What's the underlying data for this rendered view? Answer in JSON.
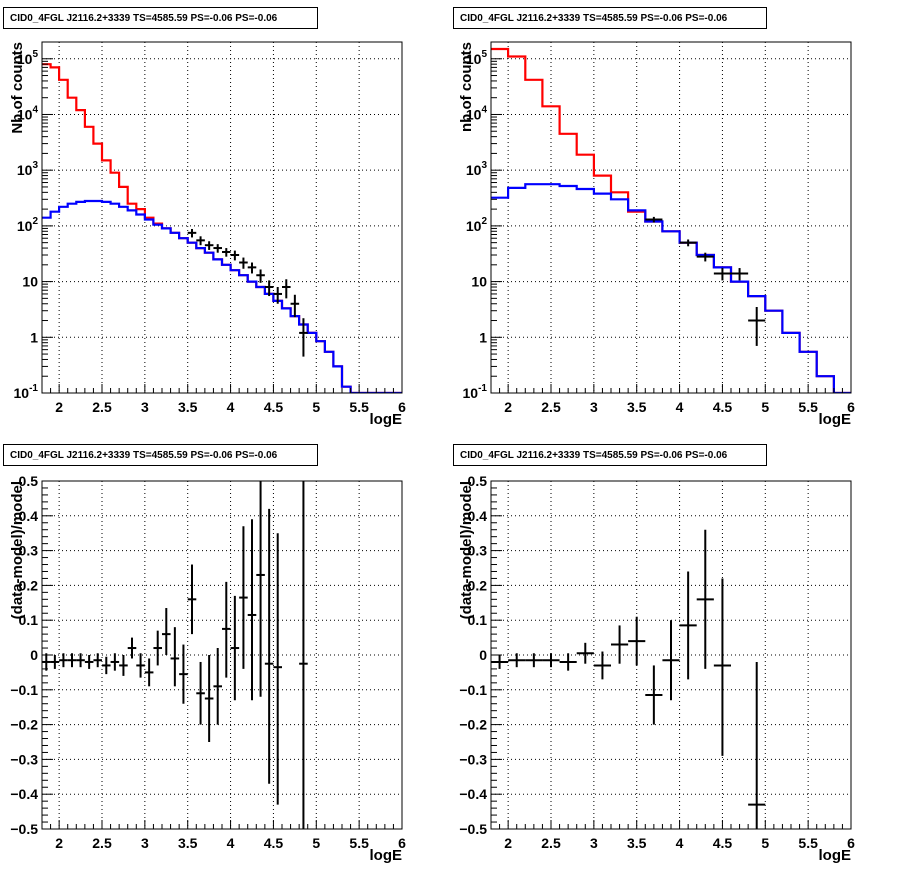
{
  "chart_data": [
    {
      "type": "line",
      "title": "CID0_4FGL J2116.2+3339 TS=4585.59 PS=-0.06 PS=-0.06",
      "xlabel": "logE",
      "ylabel": "Nb of counts",
      "xlim": [
        1.8,
        6.0
      ],
      "ylim": [
        0.1,
        200000
      ],
      "yscale": "log",
      "grid": true,
      "x_ticks": [
        "2",
        "2.5",
        "3",
        "3.5",
        "4",
        "4.5",
        "5",
        "5.5",
        "6"
      ],
      "y_ticks": [
        "10^-1",
        "1",
        "10",
        "10^2",
        "10^3",
        "10^4",
        "10^5"
      ],
      "series": [
        {
          "color": "#ff0000",
          "style": "step",
          "edges": [
            1.8,
            1.9,
            2.0,
            2.1,
            2.2,
            2.3,
            2.4,
            2.5,
            2.6,
            2.7,
            2.8,
            2.9,
            3.0,
            3.1,
            3.2,
            3.3,
            3.4,
            3.5,
            3.6,
            3.7,
            3.8,
            3.9,
            4.0,
            4.1,
            4.2,
            4.3,
            4.4,
            4.5,
            4.6,
            4.7,
            4.8,
            4.9,
            5.0,
            5.1,
            5.2,
            5.3,
            5.4,
            5.5,
            5.6,
            5.7,
            5.8,
            5.9,
            6.0
          ],
          "values": [
            80000,
            70000,
            42000,
            20000,
            12000,
            6000,
            3000,
            1500,
            900,
            500,
            250,
            200,
            140,
            110,
            90,
            75,
            60,
            50,
            40,
            33,
            25,
            20,
            16,
            13,
            10,
            8,
            6,
            4.5,
            3.3,
            2.4,
            1.7,
            1.2,
            0.85,
            0.55,
            0.3,
            0.13,
            0.1,
            0.1,
            0.1,
            0.1,
            0.1,
            0.1
          ]
        },
        {
          "color": "#0000ff",
          "style": "step",
          "edges": [
            1.8,
            1.9,
            2.0,
            2.1,
            2.2,
            2.3,
            2.4,
            2.5,
            2.6,
            2.7,
            2.8,
            2.9,
            3.0,
            3.1,
            3.2,
            3.3,
            3.4,
            3.5,
            3.6,
            3.7,
            3.8,
            3.9,
            4.0,
            4.1,
            4.2,
            4.3,
            4.4,
            4.5,
            4.6,
            4.7,
            4.8,
            4.9,
            5.0,
            5.1,
            5.2,
            5.3,
            5.4,
            5.5,
            5.6,
            5.7,
            5.8,
            5.9,
            6.0
          ],
          "values": [
            140,
            180,
            220,
            250,
            270,
            280,
            280,
            270,
            250,
            220,
            190,
            160,
            130,
            105,
            90,
            75,
            60,
            50,
            40,
            33,
            25,
            20,
            16,
            13,
            10,
            8,
            6,
            4.5,
            3.3,
            2.4,
            1.7,
            1.2,
            0.85,
            0.55,
            0.3,
            0.13,
            0.1,
            0.1,
            0.1,
            0.1,
            0.1,
            0.1
          ]
        },
        {
          "color": "#000000",
          "style": "errorbar",
          "x": [
            3.55,
            3.65,
            3.75,
            3.85,
            3.95,
            4.05,
            4.15,
            4.25,
            4.35,
            4.45,
            4.55,
            4.65,
            4.75,
            4.85
          ],
          "xerr": 0.05,
          "y": [
            75,
            55,
            45,
            40,
            34,
            30,
            22,
            18,
            13,
            8,
            6,
            8,
            4,
            1.2
          ],
          "ylo": [
            62,
            45,
            37,
            33,
            28,
            24,
            17,
            14,
            9.5,
            5.5,
            4,
            5,
            2.3,
            0.45
          ],
          "yhi": [
            88,
            65,
            53,
            47,
            40,
            36,
            27,
            22,
            16.5,
            10.5,
            8,
            11,
            5.8,
            2.2
          ]
        }
      ]
    },
    {
      "type": "line",
      "title": "CID0_4FGL J2116.2+3339 TS=4585.59 PS=-0.06 PS=-0.06",
      "xlabel": "logE",
      "ylabel": "nb of counts",
      "xlim": [
        1.8,
        6.0
      ],
      "ylim": [
        0.1,
        200000
      ],
      "yscale": "log",
      "grid": true,
      "x_ticks": [
        "2",
        "2.5",
        "3",
        "3.5",
        "4",
        "4.5",
        "5",
        "5.5",
        "6"
      ],
      "y_ticks": [
        "10^-1",
        "1",
        "10",
        "10^2",
        "10^3",
        "10^4",
        "10^5"
      ],
      "series": [
        {
          "color": "#ff0000",
          "style": "step",
          "edges": [
            1.8,
            2.0,
            2.2,
            2.4,
            2.6,
            2.8,
            3.0,
            3.2,
            3.4,
            3.6,
            3.8,
            4.0,
            4.2,
            4.4,
            4.6,
            4.8,
            5.0,
            5.2,
            5.4,
            5.6,
            5.8,
            6.0
          ],
          "values": [
            150000,
            110000,
            42000,
            14000,
            4500,
            1900,
            800,
            400,
            180,
            120,
            80,
            50,
            30,
            18,
            10,
            5.5,
            3,
            1.2,
            0.55,
            0.2,
            0.1
          ]
        },
        {
          "color": "#0000ff",
          "style": "step",
          "edges": [
            1.8,
            2.0,
            2.2,
            2.4,
            2.6,
            2.8,
            3.0,
            3.2,
            3.4,
            3.6,
            3.8,
            4.0,
            4.2,
            4.4,
            4.6,
            4.8,
            5.0,
            5.2,
            5.4,
            5.6,
            5.8,
            6.0
          ],
          "values": [
            320,
            480,
            560,
            560,
            520,
            460,
            380,
            300,
            190,
            120,
            80,
            50,
            30,
            18,
            10,
            5.5,
            3,
            1.2,
            0.55,
            0.2,
            0.1
          ]
        },
        {
          "color": "#000000",
          "style": "errorbar",
          "x": [
            3.7,
            4.1,
            4.3,
            4.5,
            4.7,
            4.9
          ],
          "xerr": 0.1,
          "y": [
            130,
            50,
            28,
            14,
            14,
            2
          ],
          "ylo": [
            115,
            43,
            23,
            10.5,
            10.5,
            0.7
          ],
          "yhi": [
            145,
            57,
            33,
            17.5,
            17.5,
            3.5
          ]
        }
      ]
    },
    {
      "type": "scatter",
      "title": "CID0_4FGL J2116.2+3339 TS=4585.59 PS=-0.06 PS=-0.06",
      "xlabel": "logE",
      "ylabel": "(data-model)/model",
      "xlim": [
        1.8,
        6.0
      ],
      "ylim": [
        -0.5,
        0.5
      ],
      "grid": true,
      "x_ticks": [
        "2",
        "2.5",
        "3",
        "3.5",
        "4",
        "4.5",
        "5",
        "5.5",
        "6"
      ],
      "y_ticks": [
        "-0.5",
        "-0.4",
        "-0.3",
        "-0.2",
        "-0.1",
        "0",
        "0.1",
        "0.2",
        "0.3",
        "0.4",
        "0.5"
      ],
      "series": [
        {
          "color": "#000000",
          "style": "errorbar",
          "x": [
            1.85,
            1.95,
            2.05,
            2.15,
            2.25,
            2.35,
            2.45,
            2.55,
            2.65,
            2.75,
            2.85,
            2.95,
            3.05,
            3.15,
            3.25,
            3.35,
            3.45,
            3.55,
            3.65,
            3.75,
            3.85,
            3.95,
            4.05,
            4.15,
            4.25,
            4.35,
            4.45,
            4.55,
            4.85
          ],
          "xerr": 0.05,
          "y": [
            -0.02,
            -0.02,
            -0.015,
            -0.015,
            -0.015,
            -0.02,
            -0.015,
            -0.03,
            -0.02,
            -0.03,
            0.02,
            -0.03,
            -0.05,
            0.02,
            0.06,
            -0.01,
            -0.055,
            0.16,
            -0.11,
            -0.125,
            -0.09,
            0.075,
            0.02,
            0.165,
            0.115,
            0.23,
            -0.025,
            -0.035,
            -0.025
          ],
          "ylo": [
            -0.045,
            -0.04,
            -0.035,
            -0.035,
            -0.035,
            -0.04,
            -0.035,
            -0.055,
            -0.045,
            -0.06,
            -0.01,
            -0.065,
            -0.09,
            -0.03,
            0.0,
            -0.09,
            -0.14,
            0.06,
            -0.2,
            -0.25,
            -0.2,
            -0.065,
            -0.13,
            -0.04,
            -0.13,
            -0.12,
            -0.37,
            -0.43,
            -0.55
          ],
          "yhi": [
            0.005,
            0.0,
            0.005,
            0.005,
            0.005,
            0.0,
            0.005,
            -0.005,
            0.005,
            0.0,
            0.05,
            0.005,
            -0.01,
            0.07,
            0.135,
            0.08,
            0.03,
            0.26,
            -0.02,
            0.0,
            0.02,
            0.21,
            0.17,
            0.37,
            0.39,
            0.55,
            0.42,
            0.35,
            0.55
          ]
        }
      ]
    },
    {
      "type": "scatter",
      "title": "CID0_4FGL J2116.2+3339 TS=4585.59 PS=-0.06 PS=-0.06",
      "xlabel": "logE",
      "ylabel": "(data-model)/model",
      "xlim": [
        1.8,
        6.0
      ],
      "ylim": [
        -0.5,
        0.5
      ],
      "grid": true,
      "x_ticks": [
        "2",
        "2.5",
        "3",
        "3.5",
        "4",
        "4.5",
        "5",
        "5.5",
        "6"
      ],
      "y_ticks": [
        "-0.5",
        "-0.4",
        "-0.3",
        "-0.2",
        "-0.1",
        "0",
        "0.1",
        "0.2",
        "0.3",
        "0.4",
        "0.5"
      ],
      "series": [
        {
          "color": "#000000",
          "style": "errorbar",
          "x": [
            1.9,
            2.1,
            2.3,
            2.5,
            2.7,
            2.9,
            3.1,
            3.3,
            3.5,
            3.7,
            3.9,
            4.1,
            4.3,
            4.5,
            4.9
          ],
          "xerr": 0.1,
          "y": [
            -0.02,
            -0.015,
            -0.015,
            -0.015,
            -0.02,
            0.005,
            -0.03,
            0.03,
            0.04,
            -0.115,
            -0.015,
            0.085,
            0.16,
            -0.03,
            -0.43
          ],
          "ylo": [
            -0.04,
            -0.035,
            -0.035,
            -0.035,
            -0.045,
            -0.025,
            -0.07,
            -0.025,
            -0.03,
            -0.2,
            -0.13,
            -0.07,
            -0.04,
            -0.29,
            -0.55
          ],
          "yhi": [
            0.0,
            0.005,
            0.005,
            0.005,
            0.005,
            0.035,
            0.01,
            0.085,
            0.11,
            -0.03,
            0.1,
            0.24,
            0.36,
            0.22,
            -0.02
          ]
        }
      ]
    }
  ]
}
